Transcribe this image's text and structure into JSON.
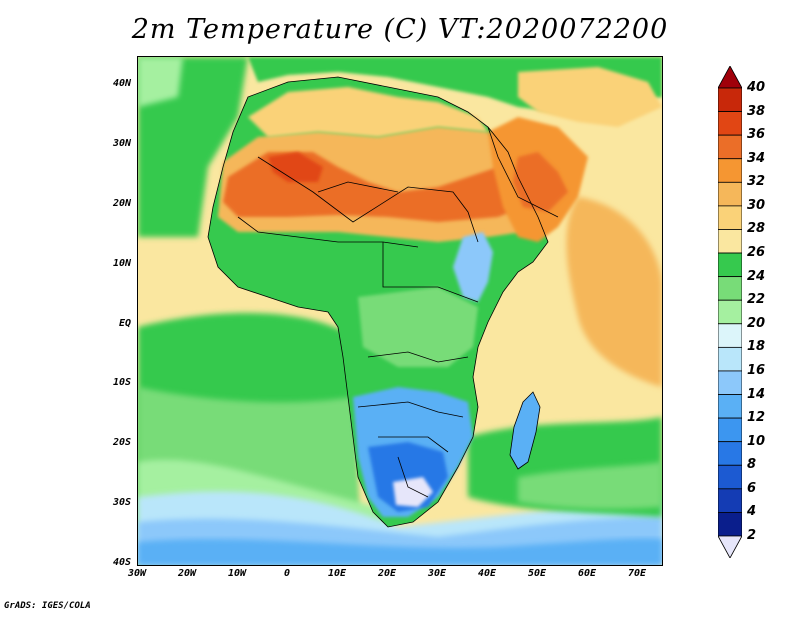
{
  "title": "2m Temperature (C) VT:2020072200",
  "credit": "GrADS: IGES/COLA",
  "map": {
    "y_ticks": [
      "40N",
      "30N",
      "20N",
      "10N",
      "EQ",
      "10S",
      "20S",
      "30S",
      "40S"
    ],
    "x_ticks": [
      "30W",
      "20W",
      "10W",
      "0",
      "10E",
      "20E",
      "30E",
      "40E",
      "50E",
      "60E",
      "70E"
    ],
    "lat_range": [
      -40,
      45
    ],
    "lon_range": [
      -30,
      75
    ]
  },
  "colorbar": {
    "levels": [
      "2",
      "4",
      "6",
      "8",
      "10",
      "12",
      "14",
      "16",
      "18",
      "20",
      "22",
      "24",
      "26",
      "28",
      "30",
      "32",
      "34",
      "36",
      "38",
      "40"
    ],
    "colors": [
      "#0a1e8c",
      "#143cb4",
      "#1c5ad2",
      "#2878e6",
      "#3c96f0",
      "#5ab0f5",
      "#8cc8fa",
      "#b9e6fa",
      "#dcf5fa",
      "#a5f0a0",
      "#78dc78",
      "#36c94e",
      "#fae7a0",
      "#fad278",
      "#f5b75a",
      "#f59632",
      "#eb6e28",
      "#e14614",
      "#c8280a",
      "#a0000a"
    ],
    "under_color": "#e6e6fa",
    "over_color": "#a0000a"
  }
}
